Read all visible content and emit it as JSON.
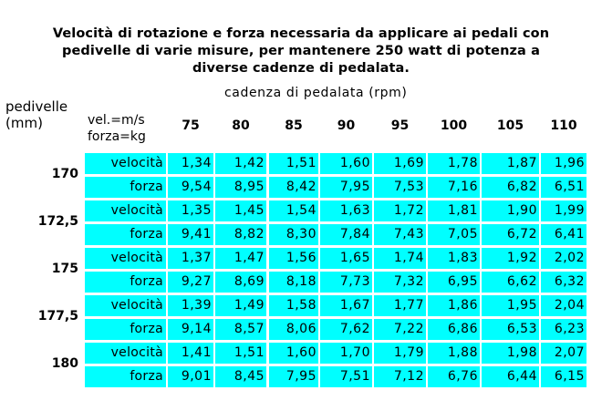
{
  "title_lines": [
    "Velocità di rotazione e forza necessaria da applicare ai pedali con",
    "pedivelle di varie misure, per mantenere 250 watt di potenza a",
    "diverse cadenze di pedalata."
  ],
  "header": {
    "cadence_label": "cadenza di pedalata (rpm)",
    "crank_label_1": "pedivelle",
    "crank_label_2": "(mm)",
    "unit_label_1": "vel.=m/s",
    "unit_label_2": "forza=kg",
    "cadences": [
      "75",
      "80",
      "85",
      "90",
      "95",
      "100",
      "105",
      "110"
    ]
  },
  "rows": [
    {
      "crank": "170",
      "speed_label": "velocità",
      "speed": [
        "1,34",
        "1,42",
        "1,51",
        "1,60",
        "1,69",
        "1,78",
        "1,87",
        "1,96"
      ],
      "force_label": "forza",
      "force": [
        "9,54",
        "8,95",
        "8,42",
        "7,95",
        "7,53",
        "7,16",
        "6,82",
        "6,51"
      ]
    },
    {
      "crank": "172,5",
      "speed_label": "velocità",
      "speed": [
        "1,35",
        "1,45",
        "1,54",
        "1,63",
        "1,72",
        "1,81",
        "1,90",
        "1,99"
      ],
      "force_label": "forza",
      "force": [
        "9,41",
        "8,82",
        "8,30",
        "7,84",
        "7,43",
        "7,05",
        "6,72",
        "6,41"
      ]
    },
    {
      "crank": "175",
      "speed_label": "velocità",
      "speed": [
        "1,37",
        "1,47",
        "1,56",
        "1,65",
        "1,74",
        "1,83",
        "1,92",
        "2,02"
      ],
      "force_label": "forza",
      "force": [
        "9,27",
        "8,69",
        "8,18",
        "7,73",
        "7,32",
        "6,95",
        "6,62",
        "6,32"
      ]
    },
    {
      "crank": "177,5",
      "speed_label": "velocità",
      "speed": [
        "1,39",
        "1,49",
        "1,58",
        "1,67",
        "1,77",
        "1,86",
        "1,95",
        "2,04"
      ],
      "force_label": "forza",
      "force": [
        "9,14",
        "8,57",
        "8,06",
        "7,62",
        "7,22",
        "6,86",
        "6,53",
        "6,23"
      ]
    },
    {
      "crank": "180",
      "speed_label": "velocità",
      "speed": [
        "1,41",
        "1,51",
        "1,60",
        "1,70",
        "1,79",
        "1,88",
        "1,98",
        "2,07"
      ],
      "force_label": "forza",
      "force": [
        "9,01",
        "8,45",
        "7,95",
        "7,51",
        "7,12",
        "6,76",
        "6,44",
        "6,15"
      ]
    }
  ],
  "colors": {
    "cell_background": "#00ffff"
  }
}
